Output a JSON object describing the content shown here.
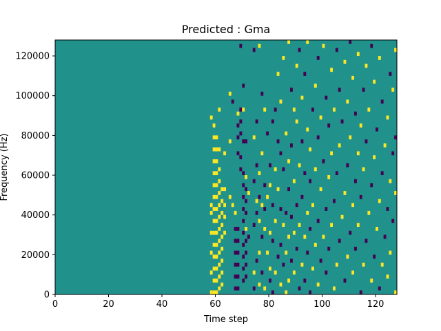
{
  "chart_data": {
    "type": "heatmap",
    "title": "Predicted : Gma",
    "xlabel": "Time step",
    "ylabel": "Frequency (Hz)",
    "xlim": [
      0,
      128
    ],
    "ylim": [
      0,
      128000
    ],
    "xticks": [
      0,
      20,
      40,
      60,
      80,
      100,
      120
    ],
    "yticks": [
      0,
      20000,
      40000,
      60000,
      80000,
      100000,
      120000
    ],
    "colormap": "viridis",
    "colors": {
      "background": "#21918c",
      "low": "#440154",
      "high": "#fde725"
    },
    "grid": false,
    "legend": "none",
    "background_value": 0.5,
    "cell_height_hz": 2000,
    "cells": [
      [
        58,
        0,
        1
      ],
      [
        58,
        10000,
        1
      ],
      [
        58,
        20000,
        1
      ],
      [
        58,
        30000,
        1
      ],
      [
        58,
        40000,
        1
      ],
      [
        58,
        44000,
        1
      ],
      [
        58,
        88000,
        1
      ],
      [
        59,
        0,
        1
      ],
      [
        59,
        6000,
        1
      ],
      [
        59,
        12000,
        1
      ],
      [
        59,
        18000,
        1
      ],
      [
        59,
        24000,
        1
      ],
      [
        59,
        30000,
        1
      ],
      [
        59,
        36000,
        1
      ],
      [
        59,
        42000,
        1
      ],
      [
        59,
        48000,
        1
      ],
      [
        59,
        54000,
        1
      ],
      [
        59,
        60000,
        1
      ],
      [
        59,
        66000,
        1
      ],
      [
        59,
        72000,
        1
      ],
      [
        59,
        78000,
        1
      ],
      [
        59,
        84000,
        1
      ],
      [
        60,
        0,
        1
      ],
      [
        60,
        6000,
        1
      ],
      [
        60,
        12000,
        1
      ],
      [
        60,
        18000,
        1
      ],
      [
        60,
        24000,
        1
      ],
      [
        60,
        30000,
        1
      ],
      [
        60,
        36000,
        1
      ],
      [
        60,
        42000,
        1
      ],
      [
        60,
        48000,
        1
      ],
      [
        60,
        54000,
        1
      ],
      [
        60,
        60000,
        1
      ],
      [
        60,
        66000,
        1
      ],
      [
        60,
        72000,
        1
      ],
      [
        60,
        78000,
        1
      ],
      [
        61,
        2000,
        1
      ],
      [
        61,
        8000,
        1
      ],
      [
        61,
        14000,
        1
      ],
      [
        61,
        20000,
        1
      ],
      [
        61,
        26000,
        1
      ],
      [
        61,
        32000,
        1
      ],
      [
        61,
        38000,
        1
      ],
      [
        61,
        44000,
        1
      ],
      [
        61,
        50000,
        1
      ],
      [
        61,
        56000,
        1
      ],
      [
        61,
        62000,
        1
      ],
      [
        61,
        72000,
        1
      ],
      [
        61,
        92000,
        1
      ],
      [
        62,
        4000,
        1
      ],
      [
        62,
        10000,
        1
      ],
      [
        62,
        16000,
        1
      ],
      [
        62,
        22000,
        1
      ],
      [
        62,
        28000,
        1
      ],
      [
        62,
        34000,
        1
      ],
      [
        62,
        40000,
        1
      ],
      [
        62,
        46000,
        1
      ],
      [
        62,
        52000,
        1
      ],
      [
        63,
        30000,
        1
      ],
      [
        63,
        38000,
        1
      ],
      [
        63,
        44000,
        1
      ],
      [
        63,
        52000,
        1
      ],
      [
        63,
        70000,
        1
      ],
      [
        65,
        48000,
        1
      ],
      [
        65,
        76000,
        1
      ],
      [
        65,
        100000,
        1
      ],
      [
        66,
        44000,
        1
      ],
      [
        66,
        96000,
        0
      ],
      [
        67,
        2000,
        0
      ],
      [
        67,
        8000,
        0
      ],
      [
        67,
        14000,
        0
      ],
      [
        67,
        20000,
        0
      ],
      [
        67,
        26000,
        0
      ],
      [
        67,
        32000,
        0
      ],
      [
        67,
        40000,
        1
      ],
      [
        68,
        2000,
        0
      ],
      [
        68,
        8000,
        0
      ],
      [
        68,
        14000,
        0
      ],
      [
        68,
        20000,
        0
      ],
      [
        68,
        26000,
        0
      ],
      [
        68,
        32000,
        0
      ],
      [
        68,
        70000,
        0
      ],
      [
        68,
        78000,
        0
      ],
      [
        68,
        84000,
        0
      ],
      [
        68,
        90000,
        1
      ],
      [
        69,
        62000,
        0
      ],
      [
        69,
        68000,
        0
      ],
      [
        69,
        80000,
        0
      ],
      [
        69,
        86000,
        0
      ],
      [
        69,
        92000,
        0
      ],
      [
        69,
        124000,
        0
      ],
      [
        70,
        6000,
        0
      ],
      [
        70,
        12000,
        0
      ],
      [
        70,
        18000,
        0
      ],
      [
        70,
        24000,
        0
      ],
      [
        70,
        30000,
        0
      ],
      [
        70,
        36000,
        0
      ],
      [
        70,
        42000,
        0
      ],
      [
        70,
        48000,
        0
      ],
      [
        70,
        54000,
        0
      ],
      [
        70,
        60000,
        0
      ],
      [
        70,
        76000,
        0
      ],
      [
        70,
        92000,
        1
      ],
      [
        70,
        104000,
        0
      ],
      [
        71,
        8000,
        0
      ],
      [
        71,
        14000,
        0
      ],
      [
        71,
        20000,
        0
      ],
      [
        71,
        26000,
        0
      ],
      [
        71,
        32000,
        1
      ],
      [
        71,
        40000,
        0
      ],
      [
        71,
        46000,
        0
      ],
      [
        71,
        52000,
        0
      ],
      [
        71,
        58000,
        1
      ],
      [
        71,
        76000,
        0
      ],
      [
        72,
        28000,
        0
      ],
      [
        72,
        50000,
        1
      ],
      [
        74,
        2000,
        0
      ],
      [
        74,
        10000,
        1
      ],
      [
        74,
        34000,
        0
      ],
      [
        74,
        56000,
        0
      ],
      [
        74,
        78000,
        1
      ],
      [
        74,
        122000,
        0
      ],
      [
        75,
        16000,
        0
      ],
      [
        75,
        40000,
        0
      ],
      [
        75,
        46000,
        1
      ],
      [
        75,
        64000,
        0
      ],
      [
        75,
        86000,
        0
      ],
      [
        76,
        4000,
        1
      ],
      [
        76,
        20000,
        1
      ],
      [
        76,
        36000,
        1
      ],
      [
        76,
        48000,
        0
      ],
      [
        76,
        60000,
        1
      ],
      [
        76,
        124000,
        1
      ],
      [
        77,
        10000,
        0
      ],
      [
        77,
        28000,
        0
      ],
      [
        77,
        44000,
        1
      ],
      [
        77,
        70000,
        1
      ],
      [
        77,
        100000,
        0
      ],
      [
        78,
        2000,
        1
      ],
      [
        78,
        32000,
        1
      ],
      [
        78,
        42000,
        0
      ],
      [
        78,
        54000,
        0
      ],
      [
        78,
        92000,
        1
      ],
      [
        79,
        20000,
        1
      ],
      [
        79,
        48000,
        1
      ],
      [
        79,
        80000,
        0
      ],
      [
        80,
        6000,
        0
      ],
      [
        80,
        12000,
        1
      ],
      [
        80,
        30000,
        1
      ],
      [
        80,
        54000,
        1
      ],
      [
        80,
        64000,
        0
      ],
      [
        81,
        0,
        0
      ],
      [
        81,
        26000,
        0
      ],
      [
        81,
        44000,
        0
      ],
      [
        81,
        86000,
        0
      ],
      [
        82,
        10000,
        1
      ],
      [
        82,
        36000,
        1
      ],
      [
        82,
        62000,
        1
      ],
      [
        82,
        92000,
        0
      ],
      [
        83,
        18000,
        0
      ],
      [
        83,
        52000,
        1
      ],
      [
        83,
        76000,
        0
      ],
      [
        83,
        110000,
        1
      ],
      [
        83,
        128000,
        0
      ],
      [
        84,
        4000,
        1
      ],
      [
        84,
        24000,
        0
      ],
      [
        84,
        42000,
        0
      ],
      [
        84,
        70000,
        0
      ],
      [
        84,
        96000,
        1
      ],
      [
        85,
        14000,
        0
      ],
      [
        85,
        34000,
        1
      ],
      [
        85,
        62000,
        0
      ],
      [
        85,
        118000,
        1
      ],
      [
        86,
        0,
        1
      ],
      [
        86,
        20000,
        1
      ],
      [
        86,
        40000,
        0
      ],
      [
        86,
        80000,
        1
      ],
      [
        87,
        6000,
        1
      ],
      [
        87,
        28000,
        1
      ],
      [
        87,
        52000,
        0
      ],
      [
        87,
        66000,
        1
      ],
      [
        87,
        126000,
        1
      ],
      [
        88,
        16000,
        0
      ],
      [
        88,
        38000,
        0
      ],
      [
        88,
        74000,
        0
      ],
      [
        88,
        102000,
        0
      ],
      [
        89,
        10000,
        1
      ],
      [
        89,
        30000,
        1
      ],
      [
        89,
        56000,
        1
      ],
      [
        89,
        92000,
        1
      ],
      [
        90,
        22000,
        0
      ],
      [
        90,
        44000,
        0
      ],
      [
        90,
        86000,
        1
      ],
      [
        90,
        114000,
        1
      ],
      [
        91,
        2000,
        0
      ],
      [
        91,
        34000,
        1
      ],
      [
        91,
        64000,
        1
      ],
      [
        91,
        122000,
        0
      ],
      [
        92,
        14000,
        1
      ],
      [
        92,
        48000,
        0
      ],
      [
        92,
        76000,
        0
      ],
      [
        92,
        98000,
        1
      ],
      [
        93,
        6000,
        0
      ],
      [
        93,
        28000,
        1
      ],
      [
        93,
        60000,
        0
      ],
      [
        93,
        110000,
        0
      ],
      [
        94,
        20000,
        0
      ],
      [
        94,
        40000,
        1
      ],
      [
        94,
        82000,
        1
      ],
      [
        94,
        126000,
        1
      ],
      [
        95,
        0,
        0
      ],
      [
        95,
        32000,
        0
      ],
      [
        95,
        56000,
        0
      ],
      [
        95,
        72000,
        1
      ],
      [
        96,
        12000,
        1
      ],
      [
        96,
        44000,
        1
      ],
      [
        96,
        92000,
        0
      ],
      [
        97,
        24000,
        1
      ],
      [
        97,
        62000,
        1
      ],
      [
        97,
        104000,
        1
      ],
      [
        98,
        4000,
        1
      ],
      [
        98,
        36000,
        0
      ],
      [
        98,
        78000,
        0
      ],
      [
        98,
        118000,
        0
      ],
      [
        99,
        16000,
        0
      ],
      [
        99,
        52000,
        1
      ],
      [
        99,
        88000,
        1
      ],
      [
        100,
        28000,
        1
      ],
      [
        100,
        66000,
        0
      ],
      [
        100,
        124000,
        1
      ],
      [
        101,
        10000,
        0
      ],
      [
        101,
        42000,
        0
      ],
      [
        101,
        98000,
        0
      ],
      [
        102,
        22000,
        0
      ],
      [
        102,
        58000,
        1
      ],
      [
        102,
        84000,
        0
      ],
      [
        103,
        34000,
        1
      ],
      [
        103,
        70000,
        1
      ],
      [
        103,
        112000,
        1
      ],
      [
        104,
        2000,
        1
      ],
      [
        104,
        46000,
        0
      ],
      [
        104,
        92000,
        1
      ],
      [
        105,
        14000,
        1
      ],
      [
        105,
        60000,
        0
      ],
      [
        105,
        122000,
        0
      ],
      [
        106,
        26000,
        0
      ],
      [
        106,
        74000,
        1
      ],
      [
        106,
        102000,
        0
      ],
      [
        107,
        38000,
        1
      ],
      [
        107,
        86000,
        0
      ],
      [
        108,
        6000,
        0
      ],
      [
        108,
        50000,
        1
      ],
      [
        108,
        116000,
        1
      ],
      [
        109,
        18000,
        1
      ],
      [
        109,
        64000,
        0
      ],
      [
        109,
        96000,
        1
      ],
      [
        110,
        30000,
        0
      ],
      [
        110,
        78000,
        1
      ],
      [
        110,
        126000,
        0
      ],
      [
        111,
        10000,
        1
      ],
      [
        111,
        44000,
        1
      ],
      [
        111,
        108000,
        1
      ],
      [
        112,
        22000,
        0
      ],
      [
        112,
        56000,
        0
      ],
      [
        112,
        90000,
        0
      ],
      [
        113,
        34000,
        1
      ],
      [
        113,
        70000,
        1
      ],
      [
        113,
        120000,
        1
      ],
      [
        114,
        0,
        0
      ],
      [
        114,
        48000,
        0
      ],
      [
        114,
        84000,
        1
      ],
      [
        115,
        14000,
        1
      ],
      [
        115,
        62000,
        1
      ],
      [
        115,
        102000,
        0
      ],
      [
        116,
        26000,
        0
      ],
      [
        116,
        76000,
        0
      ],
      [
        116,
        114000,
        1
      ],
      [
        117,
        40000,
        1
      ],
      [
        117,
        92000,
        1
      ],
      [
        118,
        6000,
        1
      ],
      [
        118,
        54000,
        0
      ],
      [
        118,
        124000,
        0
      ],
      [
        119,
        18000,
        0
      ],
      [
        119,
        68000,
        1
      ],
      [
        119,
        106000,
        1
      ],
      [
        120,
        32000,
        1
      ],
      [
        120,
        82000,
        0
      ],
      [
        121,
        2000,
        0
      ],
      [
        121,
        46000,
        1
      ],
      [
        121,
        118000,
        1
      ],
      [
        122,
        14000,
        1
      ],
      [
        122,
        60000,
        0
      ],
      [
        122,
        96000,
        0
      ],
      [
        123,
        28000,
        0
      ],
      [
        123,
        74000,
        1
      ],
      [
        123,
        128000,
        1
      ],
      [
        124,
        8000,
        1
      ],
      [
        124,
        42000,
        0
      ],
      [
        124,
        88000,
        1
      ],
      [
        125,
        20000,
        1
      ],
      [
        125,
        56000,
        1
      ],
      [
        125,
        110000,
        0
      ],
      [
        126,
        36000,
        0
      ],
      [
        126,
        70000,
        0
      ],
      [
        126,
        102000,
        1
      ],
      [
        127,
        0,
        1
      ],
      [
        127,
        50000,
        1
      ],
      [
        127,
        78000,
        0
      ],
      [
        127,
        122000,
        1
      ]
    ]
  }
}
